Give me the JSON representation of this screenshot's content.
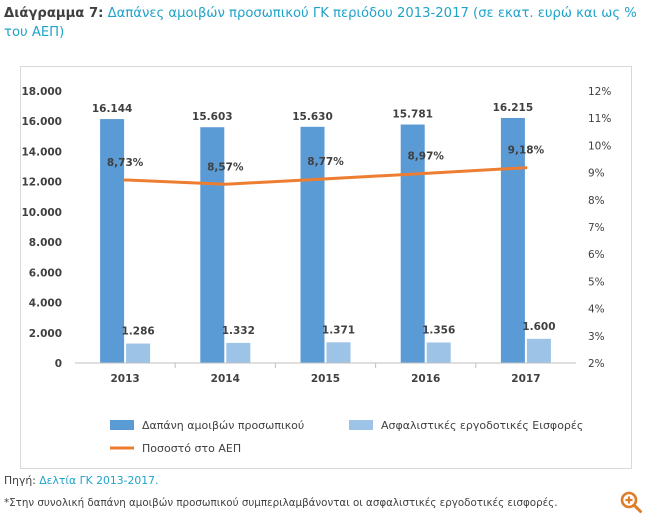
{
  "title": {
    "label": "Διάγραμμα 7:",
    "text": "Δαπάνες αμοιβών προσωπικού ΓΚ περιόδου 2013-2017 (σε εκατ. ευρώ και ως % του ΑΕΠ)"
  },
  "chart_data": {
    "type": "bar",
    "categories": [
      "2013",
      "2014",
      "2015",
      "2016",
      "2017"
    ],
    "series": [
      {
        "name": "Δαπάνη αμοιβών προσωπικού",
        "type": "bar",
        "axis": "left",
        "values": [
          16144,
          15603,
          15630,
          15781,
          16215
        ],
        "labels": [
          "16.144",
          "15.603",
          "15.630",
          "15.781",
          "16.215"
        ],
        "color": "#5b9bd5"
      },
      {
        "name": "Ασφαλιστικές εργοδοτικές Εισφορές",
        "type": "bar",
        "axis": "left",
        "values": [
          1286,
          1332,
          1371,
          1356,
          1600
        ],
        "labels": [
          "1.286",
          "1.332",
          "1.371",
          "1.356",
          "1.600"
        ],
        "color": "#9dc3e6"
      },
      {
        "name": "Ποσοστό στο ΑΕΠ",
        "type": "line",
        "axis": "right",
        "values": [
          8.73,
          8.57,
          8.77,
          8.97,
          9.18
        ],
        "labels": [
          "8,73%",
          "8,57%",
          "8,77%",
          "8,97%",
          "9,18%"
        ],
        "color": "#ed7d31"
      }
    ],
    "y_left": {
      "min": 0,
      "max": 18000,
      "step": 2000,
      "tick_labels": [
        "0",
        "2.000",
        "4.000",
        "6.000",
        "8.000",
        "10.000",
        "12.000",
        "14.000",
        "16.000",
        "18.000"
      ]
    },
    "y_right": {
      "min": 2,
      "max": 12,
      "step": 1,
      "tick_labels": [
        "2%",
        "3%",
        "4%",
        "5%",
        "6%",
        "7%",
        "8%",
        "9%",
        "10%",
        "11%",
        "12%"
      ]
    },
    "grid": false,
    "legend_position": "bottom"
  },
  "source": {
    "label": "Πηγή:",
    "link_text": "Δελτία ΓΚ 2013-2017."
  },
  "note": "*Στην συνολική δαπάνη αμοιβών προσωπικού συμπεριλαμβάνονται οι ασφαλιστικές εργοδοτικές εισφορές.",
  "colors": {
    "accent": "#1fa3c9",
    "bar_main": "#5b9bd5",
    "bar_light": "#9dc3e6",
    "line": "#ed7d31"
  },
  "icons": {
    "zoom": "zoom-in-icon"
  }
}
